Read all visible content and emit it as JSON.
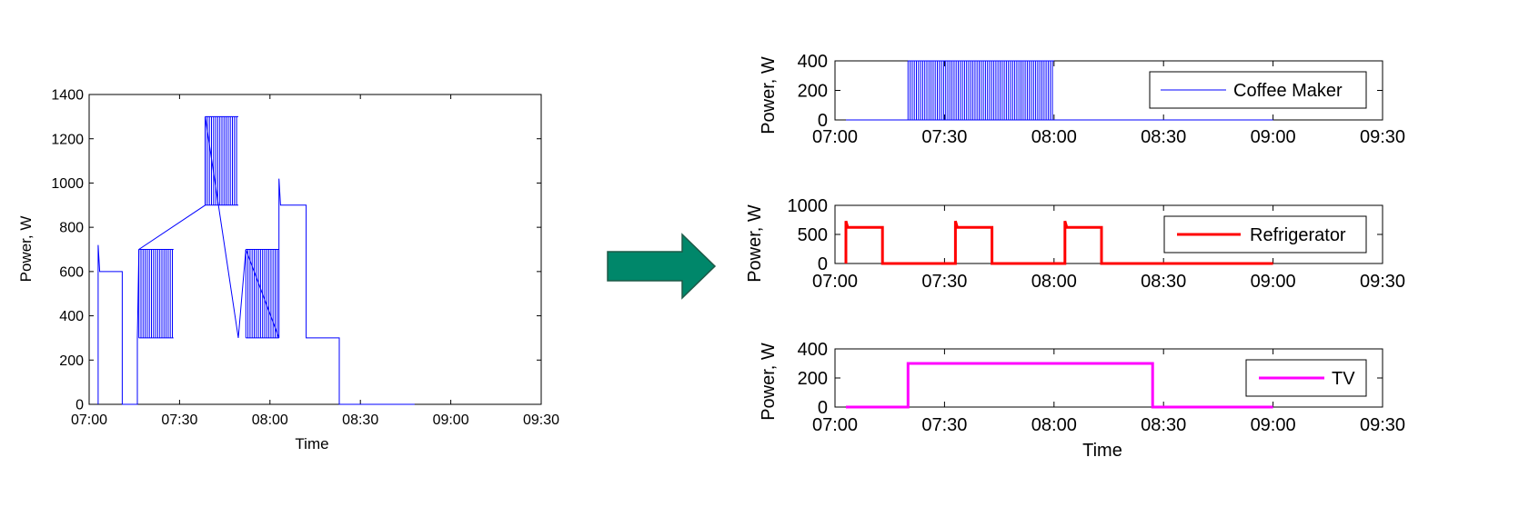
{
  "colors": {
    "aggregate": "#0000ff",
    "arrow": "#00876a",
    "arrow_edge": "#1f5a48"
  },
  "chart_data": [
    {
      "id": "aggregate",
      "type": "line",
      "xlabel": "Time",
      "ylabel": "Power, W",
      "xlim": [
        "07:00",
        "09:30"
      ],
      "ylim": [
        0,
        1400
      ],
      "xticks": [
        "07:00",
        "07:30",
        "08:00",
        "08:30",
        "09:00",
        "09:30"
      ],
      "yticks": [
        0,
        200,
        400,
        600,
        800,
        1000,
        1200,
        1400
      ],
      "series": [
        {
          "color": "#0000ff",
          "step_points": [
            [
              "07:03",
              0
            ],
            [
              "07:03",
              720
            ],
            [
              "07:03.5",
              600
            ],
            [
              "07:11",
              600
            ],
            [
              "07:11",
              0
            ],
            [
              "07:16",
              0
            ],
            [
              "07:16",
              300
            ],
            [
              "07:16.5",
              700
            ],
            [
              "07:38.5",
              900
            ],
            [
              "07:38.5",
              1300
            ],
            [
              "07:49.5",
              300
            ],
            [
              "07:52",
              700
            ],
            [
              "08:03",
              300
            ],
            [
              "08:03",
              1020
            ],
            [
              "08:03.5",
              900
            ],
            [
              "08:12",
              900
            ],
            [
              "08:12",
              300
            ],
            [
              "08:23",
              300
            ],
            [
              "08:23",
              0
            ],
            [
              "08:48",
              0
            ]
          ],
          "oscillation_bands": [
            {
              "from": "07:16.5",
              "to": "07:28",
              "low": 300,
              "high": 700
            },
            {
              "from": "07:38.5",
              "to": "07:49.5",
              "low": 900,
              "high": 1300
            },
            {
              "from": "07:52",
              "to": "08:03",
              "low": 300,
              "high": 700
            }
          ]
        }
      ]
    },
    {
      "id": "coffee-maker",
      "type": "line",
      "xlabel": "",
      "ylabel": "Power, W",
      "xlim": [
        "07:00",
        "09:30"
      ],
      "ylim": [
        0,
        400
      ],
      "xticks": [
        "07:00",
        "07:30",
        "08:00",
        "08:30",
        "09:00",
        "09:30"
      ],
      "yticks": [
        0,
        200,
        400
      ],
      "legend": "top-right",
      "series": [
        {
          "name": "Coffee Maker",
          "color": "#0000ff",
          "step_points": [
            [
              "07:03",
              0
            ],
            [
              "07:20",
              0
            ],
            [
              "08:00",
              0
            ],
            [
              "09:00",
              0
            ]
          ],
          "oscillation_bands": [
            {
              "from": "07:20",
              "to": "08:00",
              "low": 0,
              "high": 400
            }
          ]
        }
      ]
    },
    {
      "id": "refrigerator",
      "type": "line",
      "xlabel": "",
      "ylabel": "Power, W",
      "xlim": [
        "07:00",
        "09:30"
      ],
      "ylim": [
        0,
        1000
      ],
      "xticks": [
        "07:00",
        "07:30",
        "08:00",
        "08:30",
        "09:00",
        "09:30"
      ],
      "yticks": [
        0,
        500,
        1000
      ],
      "legend": "top-right",
      "series": [
        {
          "name": "Refrigerator",
          "color": "#ff0000",
          "step_points": [
            [
              "07:03",
              0
            ],
            [
              "07:03",
              730
            ],
            [
              "07:03.5",
              620
            ],
            [
              "07:13",
              620
            ],
            [
              "07:13",
              0
            ],
            [
              "07:33",
              0
            ],
            [
              "07:33",
              730
            ],
            [
              "07:33.5",
              620
            ],
            [
              "07:43",
              620
            ],
            [
              "07:43",
              0
            ],
            [
              "08:03",
              0
            ],
            [
              "08:03",
              730
            ],
            [
              "08:03.5",
              620
            ],
            [
              "08:13",
              620
            ],
            [
              "08:13",
              0
            ],
            [
              "09:00",
              0
            ]
          ]
        }
      ]
    },
    {
      "id": "tv",
      "type": "line",
      "xlabel": "Time",
      "ylabel": "Power, W",
      "xlim": [
        "07:00",
        "09:30"
      ],
      "ylim": [
        0,
        400
      ],
      "xticks": [
        "07:00",
        "07:30",
        "08:00",
        "08:30",
        "09:00",
        "09:30"
      ],
      "yticks": [
        0,
        200,
        400
      ],
      "legend": "top-right",
      "series": [
        {
          "name": "TV",
          "color": "#ff00ff",
          "step_points": [
            [
              "07:03",
              0
            ],
            [
              "07:20",
              0
            ],
            [
              "07:20",
              300
            ],
            [
              "08:27",
              300
            ],
            [
              "08:27",
              0
            ],
            [
              "09:00",
              0
            ]
          ]
        }
      ]
    }
  ]
}
